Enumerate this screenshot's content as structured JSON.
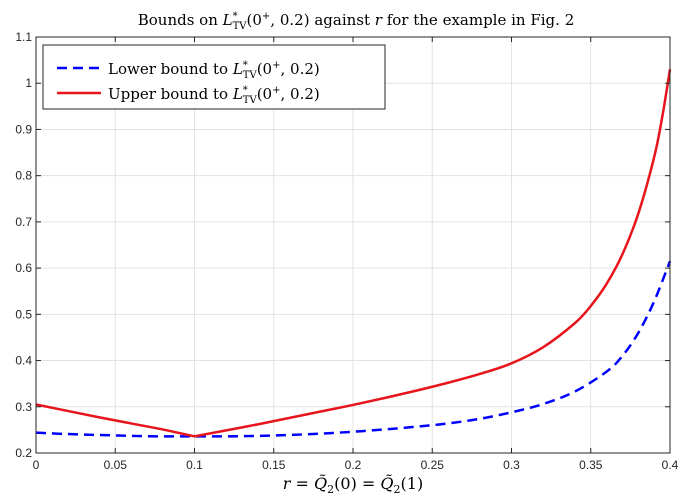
{
  "chart_data": {
    "type": "line",
    "title": "Bounds on L*TV(0+, 0.2) against r for the example in Fig. 2",
    "title_parts": {
      "pre": "Bounds on ",
      "L": "L",
      "star": "*",
      "sub": "TV",
      "args": "(0",
      "plus": "+",
      "rest": ", 0.2)",
      "post": " against ",
      "r": "r",
      "tail": " for the example in Fig. 2"
    },
    "xlabel": "r = Q̃2(0) = Q̃2(1)",
    "xlabel_parts": {
      "r": "r",
      "eq1": " = ",
      "Q1": "Q̃",
      "sub1": "2",
      "arg1": "(0) = ",
      "Q2": "Q̃",
      "sub2": "2",
      "arg2": "(1)"
    },
    "ylabel": "",
    "xlim": [
      0,
      0.4
    ],
    "ylim": [
      0.2,
      1.1
    ],
    "xticks": [
      "0",
      "0.05",
      "0.1",
      "0.15",
      "0.2",
      "0.25",
      "0.3",
      "0.35",
      "0.4"
    ],
    "yticks": [
      "0.2",
      "0.3",
      "0.4",
      "0.5",
      "0.6",
      "0.7",
      "0.8",
      "0.9",
      "1",
      "1.1"
    ],
    "grid": true,
    "legend_position": "top-left",
    "series": [
      {
        "name": "Lower bound to L*TV(0+, 0.2)",
        "legend_prefix": "Lower bound to ",
        "color": "#0000ff",
        "style": "dashed",
        "x": [
          0,
          0.02,
          0.04,
          0.06,
          0.08,
          0.1,
          0.12,
          0.14,
          0.16,
          0.18,
          0.2,
          0.22,
          0.24,
          0.26,
          0.28,
          0.3,
          0.32,
          0.34,
          0.36,
          0.37,
          0.38,
          0.39,
          0.4
        ],
        "y": [
          0.244,
          0.241,
          0.239,
          0.237,
          0.236,
          0.236,
          0.236,
          0.237,
          0.239,
          0.242,
          0.246,
          0.251,
          0.257,
          0.264,
          0.274,
          0.288,
          0.306,
          0.333,
          0.376,
          0.41,
          0.46,
          0.528,
          0.615
        ]
      },
      {
        "name": "Upper bound to L*TV(0+, 0.2)",
        "legend_prefix": "Upper bound to ",
        "color": "#e8141c",
        "style": "solid",
        "x": [
          0,
          0.02,
          0.04,
          0.06,
          0.08,
          0.1,
          0.12,
          0.14,
          0.16,
          0.18,
          0.2,
          0.22,
          0.24,
          0.26,
          0.28,
          0.3,
          0.32,
          0.34,
          0.35,
          0.36,
          0.37,
          0.38,
          0.39,
          0.395,
          0.4
        ],
        "y": [
          0.305,
          0.291,
          0.277,
          0.264,
          0.251,
          0.236,
          0.249,
          0.262,
          0.276,
          0.29,
          0.304,
          0.319,
          0.335,
          0.352,
          0.371,
          0.394,
          0.429,
          0.481,
          0.518,
          0.566,
          0.63,
          0.718,
          0.84,
          0.925,
          1.03
        ]
      }
    ],
    "legend_math": {
      "L": "L",
      "star": "*",
      "sub": "TV",
      "args": "(0",
      "plus": "+",
      "rest": ", 0.2)"
    }
  }
}
